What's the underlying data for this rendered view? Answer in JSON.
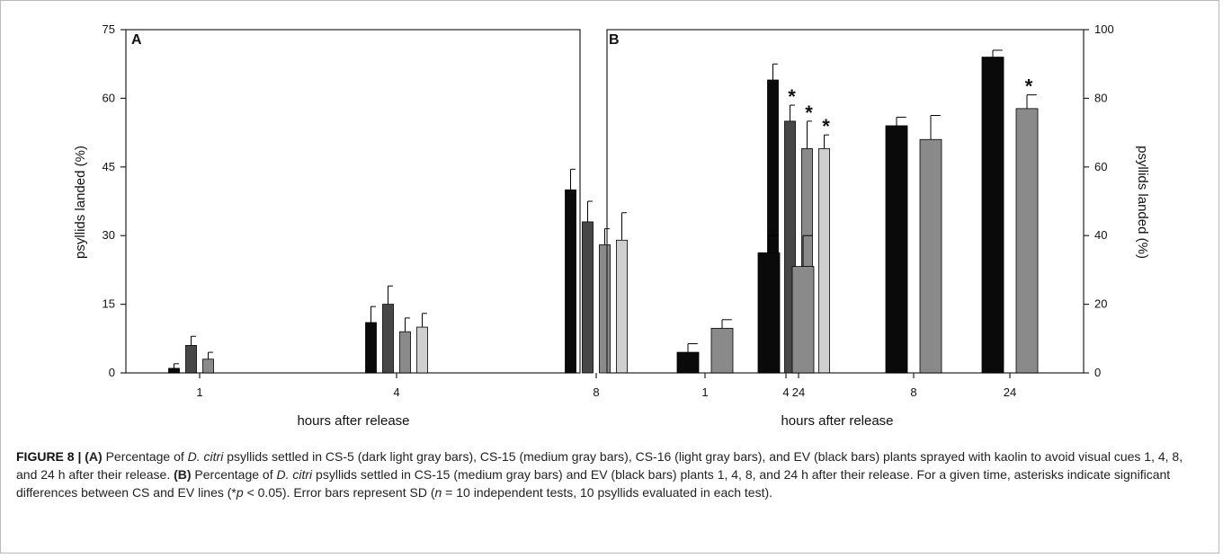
{
  "figure_number": "FIGURE 8 |",
  "caption": [
    {
      "t": "(A)",
      "b": true
    },
    {
      "t": " Percentage of "
    },
    {
      "t": "D. citri",
      "i": true
    },
    {
      "t": " psyllids settled in CS-5 (dark light gray bars), CS-15 (medium gray bars), CS-16 (light gray bars), and EV (black bars) plants sprayed with kaolin to avoid visual cues 1, 4, 8, and 24 h after their release. "
    },
    {
      "t": "(B)",
      "b": true
    },
    {
      "t": " Percentage of "
    },
    {
      "t": "D. citri",
      "i": true
    },
    {
      "t": " psyllids settled in CS-15 (medium gray bars) and EV (black bars) plants 1, 4, 8, and 24 h after their release. For a given time, asterisks indicate significant differences between CS and EV lines (*"
    },
    {
      "t": "p",
      "i": true
    },
    {
      "t": " < 0.05). Error bars represent SD ("
    },
    {
      "t": "n",
      "i": true
    },
    {
      "t": " = 10 independent tests, 10 psyllids evaluated in each test)."
    }
  ],
  "colors": {
    "EV": "#0a0a0a",
    "CS-5": "#474747",
    "CS-15": "#8a8a8a",
    "CS-16": "#cfcfcf",
    "axis": "#222222"
  },
  "chart_data": [
    {
      "panel": "A",
      "type": "bar",
      "xlabel": "hours after release",
      "ylabel": "psyllids landed (%)",
      "ylim": [
        0,
        75
      ],
      "yticks": [
        0,
        15,
        30,
        45,
        60,
        75
      ],
      "categories": [
        "1",
        "4",
        "8",
        "24"
      ],
      "series": [
        {
          "key": "EV",
          "values": [
            1,
            11,
            40,
            64
          ],
          "errors": [
            1,
            3.5,
            4.5,
            3.5
          ],
          "significant": [
            false,
            false,
            false,
            false
          ]
        },
        {
          "key": "CS-5",
          "values": [
            6,
            15,
            33,
            55
          ],
          "errors": [
            2,
            4,
            4.5,
            3.5
          ],
          "significant": [
            false,
            false,
            false,
            true
          ]
        },
        {
          "key": "CS-15",
          "values": [
            3,
            9,
            28,
            49
          ],
          "errors": [
            1.5,
            3,
            3.5,
            6
          ],
          "significant": [
            false,
            false,
            false,
            true
          ]
        },
        {
          "key": "CS-16",
          "values": [
            null,
            10,
            29,
            49
          ],
          "errors": [
            null,
            3,
            6,
            3
          ],
          "significant": [
            false,
            false,
            false,
            true
          ]
        }
      ]
    },
    {
      "panel": "B",
      "type": "bar",
      "xlabel": "hours after release",
      "ylabel": "psyllids landed (%)",
      "ylim": [
        0,
        100
      ],
      "yticks": [
        0,
        20,
        40,
        60,
        80,
        100
      ],
      "categories": [
        "1",
        "4",
        "8",
        "24"
      ],
      "series": [
        {
          "key": "EV",
          "values": [
            6,
            35,
            72,
            92
          ],
          "errors": [
            2.5,
            5,
            2.5,
            2
          ],
          "significant": [
            false,
            false,
            false,
            false
          ]
        },
        {
          "key": "CS-15",
          "values": [
            13,
            31,
            68,
            77
          ],
          "errors": [
            2.5,
            9,
            7,
            4
          ],
          "significant": [
            false,
            false,
            false,
            true
          ]
        }
      ]
    }
  ]
}
